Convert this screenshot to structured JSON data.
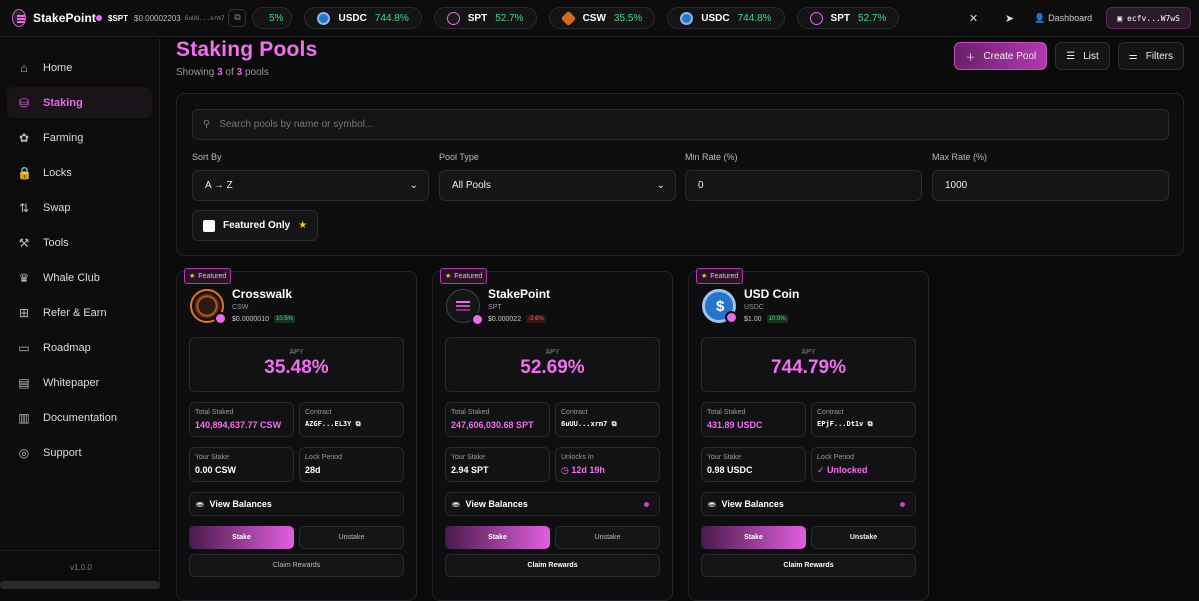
{
  "brand": {
    "name": "StakePoint"
  },
  "topbar": {
    "price_label": "$SPT",
    "price_value": "$0.00002203",
    "contract_short": "6uUU...xrm7",
    "ticker": [
      {
        "symbol": "",
        "value": "5%",
        "icon": "partial"
      },
      {
        "symbol": "USDC",
        "value": "744.8%",
        "icon": "usdc-icon"
      },
      {
        "symbol": "SPT",
        "value": "52.7%",
        "icon": "spt-icon"
      },
      {
        "symbol": "CSW",
        "value": "35.5%",
        "icon": "csw-icon"
      },
      {
        "symbol": "USDC",
        "value": "744.8%",
        "icon": "usdc-icon"
      },
      {
        "symbol": "SPT",
        "value": "52.7%",
        "icon": "spt-icon"
      }
    ],
    "dashboard_label": "Dashboard",
    "wallet_short": "ecfv...W7wS"
  },
  "sidebar": {
    "items": [
      {
        "label": "Home",
        "icon": "home-icon",
        "glyph": "⌂"
      },
      {
        "label": "Staking",
        "icon": "staking-icon",
        "glyph": "⛁",
        "active": true
      },
      {
        "label": "Farming",
        "icon": "farming-icon",
        "glyph": "✿"
      },
      {
        "label": "Locks",
        "icon": "lock-icon",
        "glyph": "🔒"
      },
      {
        "label": "Swap",
        "icon": "swap-icon",
        "glyph": "⇅"
      },
      {
        "label": "Tools",
        "icon": "tools-icon",
        "glyph": "⚒"
      },
      {
        "label": "Whale Club",
        "icon": "crown-icon",
        "glyph": "♛"
      },
      {
        "label": "Refer & Earn",
        "icon": "gift-icon",
        "glyph": "⊞"
      },
      {
        "label": "Roadmap",
        "icon": "map-icon",
        "glyph": "▭"
      },
      {
        "label": "Whitepaper",
        "icon": "document-icon",
        "glyph": "▤"
      },
      {
        "label": "Documentation",
        "icon": "book-icon",
        "glyph": "▥"
      },
      {
        "label": "Support",
        "icon": "support-icon",
        "glyph": "◎"
      }
    ],
    "version": "v1.0.0"
  },
  "page": {
    "title": "Staking Pools",
    "showing_prefix": "Showing",
    "showing_count": "3",
    "showing_of": "of",
    "showing_total": "3",
    "showing_suffix": "pools",
    "create_label": "Create Pool",
    "list_label": "List",
    "filters_label": "Filters"
  },
  "filters": {
    "search_placeholder": "Search pools by name or symbol...",
    "sort_label": "Sort By",
    "sort_value": "A → Z",
    "type_label": "Pool Type",
    "type_value": "All Pools",
    "min_label": "Min Rate (%)",
    "min_value": "0",
    "max_label": "Max Rate (%)",
    "max_value": "1000",
    "featured_label": "Featured Only"
  },
  "pools": [
    {
      "badge": "Featured",
      "name": "Crosswalk",
      "symbol": "CSW",
      "price": "$0.0000010",
      "change": "10.5%",
      "change_dir": "up",
      "apy_label": "APY",
      "apy": "35.48%",
      "total_label": "Total Staked",
      "total": "140,894,637.77 CSW",
      "contract_label": "Contract",
      "contract": "AZGF...EL3Y",
      "stake_label": "Your Stake",
      "stake": "0.00 CSW",
      "lock_label": "Lock Period",
      "lock": "28d",
      "view_label": "View Balances",
      "stake_btn": "Stake",
      "unstake_btn": "Unstake",
      "claim_btn": "Claim Rewards"
    },
    {
      "badge": "Featured",
      "name": "StakePoint",
      "symbol": "SPT",
      "price": "$0.000022",
      "change": "-3.6%",
      "change_dir": "down",
      "apy_label": "APY",
      "apy": "52.69%",
      "total_label": "Total Staked",
      "total": "247,606,030.68 SPT",
      "contract_label": "Contract",
      "contract": "6uUU...xrm7",
      "stake_label": "Your Stake",
      "stake": "2.94 SPT",
      "lock_label": "Unlocks In",
      "lock": "◷ 12d 19h",
      "view_label": "View Balances",
      "stake_btn": "Stake",
      "unstake_btn": "Unstake",
      "claim_btn": "Claim Rewards"
    },
    {
      "badge": "Featured",
      "name": "USD Coin",
      "symbol": "USDC",
      "price": "$1.00",
      "change": "10.0%",
      "change_dir": "up",
      "apy_label": "APY",
      "apy": "744.79%",
      "total_label": "Total Staked",
      "total": "431.89 USDC",
      "contract_label": "Contract",
      "contract": "EPjF...Dt1v",
      "stake_label": "Your Stake",
      "stake": "0.98 USDC",
      "lock_label": "Lock Period",
      "lock": "✓ Unlocked",
      "view_label": "View Balances",
      "stake_btn": "Stake",
      "unstake_btn": "Unstake",
      "claim_btn": "Claim Rewards"
    }
  ],
  "colors": {
    "accent": "#e86be8",
    "positive": "#3ddc84",
    "negative": "#ff5a5a",
    "star": "#f5c518"
  }
}
